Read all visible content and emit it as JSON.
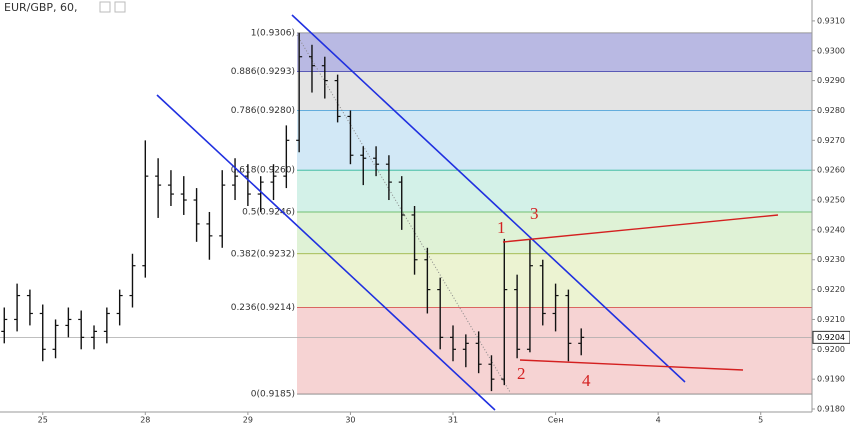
{
  "chart_data": {
    "type": "ohlc",
    "title": "EUR/GBP, 60,",
    "x": [
      -9,
      -6,
      -3,
      0,
      3,
      6,
      9,
      12,
      15,
      18,
      21,
      24,
      27,
      30,
      33,
      36,
      39,
      42,
      45,
      48,
      51,
      54,
      57,
      60,
      63,
      66,
      69,
      72,
      75,
      78,
      81,
      84,
      87,
      90,
      93,
      96,
      99,
      102,
      105,
      108,
      111,
      114,
      117,
      120,
      123,
      126
    ],
    "open": [
      0.9206,
      0.921,
      0.9218,
      0.9212,
      0.92,
      0.9208,
      0.921,
      0.9204,
      0.9206,
      0.9212,
      0.9218,
      0.9228,
      0.9258,
      0.9255,
      0.9252,
      0.925,
      0.9242,
      0.9238,
      0.9255,
      0.9258,
      0.9252,
      0.9256,
      0.9258,
      0.927,
      0.9298,
      0.9295,
      0.929,
      0.9278,
      0.9265,
      0.9264,
      0.9262,
      0.9256,
      0.9245,
      0.923,
      0.922,
      0.9204,
      0.92,
      0.9202,
      0.9195,
      0.919,
      0.922,
      0.92,
      0.9228,
      0.9212,
      0.9218,
      0.9202
    ],
    "high": [
      0.9214,
      0.9222,
      0.922,
      0.9215,
      0.921,
      0.9214,
      0.9213,
      0.9208,
      0.9214,
      0.922,
      0.9232,
      0.927,
      0.9264,
      0.926,
      0.9258,
      0.9254,
      0.9246,
      0.926,
      0.9264,
      0.9262,
      0.9258,
      0.9262,
      0.9275,
      0.9306,
      0.9302,
      0.9298,
      0.9292,
      0.928,
      0.9268,
      0.9268,
      0.9265,
      0.9258,
      0.9248,
      0.9234,
      0.9224,
      0.9208,
      0.9205,
      0.9206,
      0.9198,
      0.9237,
      0.9225,
      0.9237,
      0.923,
      0.9222,
      0.922,
      0.9207
    ],
    "low": [
      0.9202,
      0.9206,
      0.9208,
      0.9196,
      0.9197,
      0.9204,
      0.92,
      0.92,
      0.9202,
      0.9208,
      0.9214,
      0.9224,
      0.9244,
      0.9248,
      0.9245,
      0.9236,
      0.923,
      0.9234,
      0.925,
      0.9248,
      0.9246,
      0.925,
      0.9254,
      0.9266,
      0.9286,
      0.9284,
      0.9276,
      0.9262,
      0.9255,
      0.9258,
      0.925,
      0.924,
      0.9225,
      0.9212,
      0.92,
      0.9196,
      0.9194,
      0.9192,
      0.9186,
      0.9188,
      0.9197,
      0.9199,
      0.9208,
      0.9206,
      0.9196,
      0.9198
    ],
    "close": [
      0.921,
      0.9218,
      0.9212,
      0.92,
      0.9208,
      0.921,
      0.9204,
      0.9206,
      0.9212,
      0.9218,
      0.9228,
      0.9258,
      0.9255,
      0.9252,
      0.925,
      0.9242,
      0.9238,
      0.9255,
      0.9258,
      0.9252,
      0.9256,
      0.9258,
      0.927,
      0.9298,
      0.9295,
      0.929,
      0.9278,
      0.9265,
      0.9264,
      0.9262,
      0.9256,
      0.9245,
      0.923,
      0.922,
      0.9204,
      0.92,
      0.9202,
      0.9195,
      0.919,
      0.922,
      0.92,
      0.9228,
      0.9212,
      0.9218,
      0.9202,
      0.9204
    ],
    "color": "#111111",
    "xlim": [
      -10,
      180
    ],
    "xticks": [
      {
        "value": 0,
        "label": "25"
      },
      {
        "value": 24,
        "label": "28"
      },
      {
        "value": 48,
        "label": "29"
      },
      {
        "value": 72,
        "label": "30"
      },
      {
        "value": 96,
        "label": "31"
      },
      {
        "value": 120,
        "label": "Сен"
      },
      {
        "value": 144,
        "label": "4"
      },
      {
        "value": 168,
        "label": "5"
      }
    ],
    "ylim": [
      0.9179,
      0.9317
    ],
    "yticks": [
      {
        "value": 0.931,
        "label": "0.9310"
      },
      {
        "value": 0.93,
        "label": "0.9300"
      },
      {
        "value": 0.929,
        "label": "0.9290"
      },
      {
        "value": 0.928,
        "label": "0.9280"
      },
      {
        "value": 0.927,
        "label": "0.9270"
      },
      {
        "value": 0.926,
        "label": "0.9260"
      },
      {
        "value": 0.925,
        "label": "0.9250"
      },
      {
        "value": 0.924,
        "label": "0.9240"
      },
      {
        "value": 0.923,
        "label": "0.9230"
      },
      {
        "value": 0.922,
        "label": "0.9220"
      },
      {
        "value": 0.921,
        "label": "0.9210"
      },
      {
        "value": 0.92,
        "label": "0.9200"
      },
      {
        "value": 0.919,
        "label": "0.9190"
      },
      {
        "value": 0.918,
        "label": "0.9180"
      }
    ],
    "last_price": 0.9204,
    "fib_levels": [
      {
        "label": "1(0.9306)",
        "value": 0.9306,
        "color": "#808080",
        "zone": "#b9b9e3"
      },
      {
        "label": "0.886(0.9293)",
        "value": 0.9293,
        "color": "#3a3aa8",
        "zone": "#e4e4e4"
      },
      {
        "label": "0.786(0.9280)",
        "value": 0.928,
        "color": "#3d9ad6",
        "zone": "#d2e8f6"
      },
      {
        "label": "0.618(0.9260)",
        "value": 0.926,
        "color": "#2fb59a",
        "zone": "#d3f1e8"
      },
      {
        "label": "0.5(0.9246)",
        "value": 0.9246,
        "color": "#4caf50",
        "zone": "#dff2d6"
      },
      {
        "label": "0.382(0.9232)",
        "value": 0.9232,
        "color": "#94ad2c",
        "zone": "#ecf3d2"
      },
      {
        "label": "0.236(0.9214)",
        "value": 0.9214,
        "color": "#d23c3c",
        "zone": "#f6d3d3"
      },
      {
        "label": "0(0.9185)",
        "value": 0.9185,
        "color": "#808080",
        "zone": "#f6d3d3"
      }
    ],
    "annotations": [
      "1",
      "2",
      "3",
      "4"
    ]
  }
}
